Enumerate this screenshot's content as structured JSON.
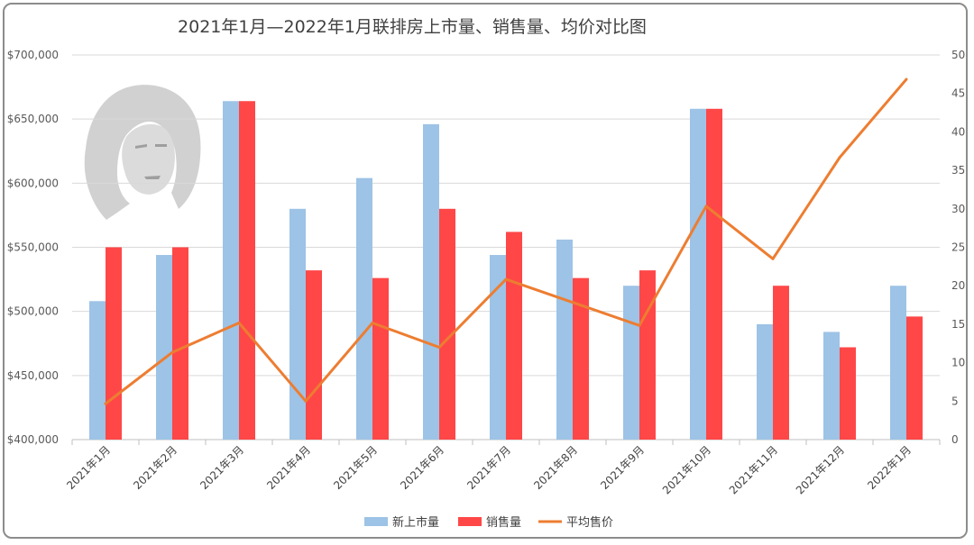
{
  "chart_data": {
    "type": "bar",
    "title": "2021年1月—2022年1月联排房上市量、销售量、均价对比图",
    "categories": [
      "2021年1月",
      "2021年2月",
      "2021年3月",
      "2021年4月",
      "2021年5月",
      "2021年6月",
      "2021年7月",
      "2021年8月",
      "2021年9月",
      "2021年10月",
      "2021年11月",
      "2021年12月",
      "2022年1月"
    ],
    "y_left": {
      "ylim": [
        400000,
        700000
      ],
      "ticks": [
        400000,
        450000,
        500000,
        550000,
        600000,
        650000,
        700000
      ],
      "tick_labels": [
        "$400,000",
        "$450,000",
        "$500,000",
        "$550,000",
        "$600,000",
        "$650,000",
        "$700,000"
      ]
    },
    "y_right": {
      "ylim": [
        0,
        50
      ],
      "ticks": [
        0,
        5,
        10,
        15,
        20,
        25,
        30,
        35,
        40,
        45,
        50
      ],
      "tick_labels": [
        "0",
        "5",
        "10",
        "15",
        "20",
        "25",
        "30",
        "35",
        "40",
        "45",
        "50"
      ]
    },
    "series": [
      {
        "name": "新上市量",
        "type": "bar",
        "axis": "right",
        "color": "#9dc3e6",
        "values": [
          18,
          24,
          44,
          30,
          34,
          41,
          24,
          26,
          20,
          43,
          15,
          14,
          20
        ]
      },
      {
        "name": "销售量",
        "type": "bar",
        "axis": "right",
        "color": "#ff4747",
        "values": [
          25,
          25,
          44,
          22,
          21,
          30,
          27,
          21,
          22,
          43,
          20,
          12,
          16
        ]
      },
      {
        "name": "平均售价",
        "type": "line",
        "axis": "left",
        "color": "#ed7d31",
        "values": [
          428000,
          468000,
          491000,
          430000,
          491000,
          472000,
          525000,
          507000,
          489000,
          582000,
          541000,
          620000,
          681000
        ]
      }
    ],
    "legend_position": "bottom",
    "grid": true
  },
  "decoration": {
    "watermark_icon": "woman-portrait-silhouette-icon"
  }
}
